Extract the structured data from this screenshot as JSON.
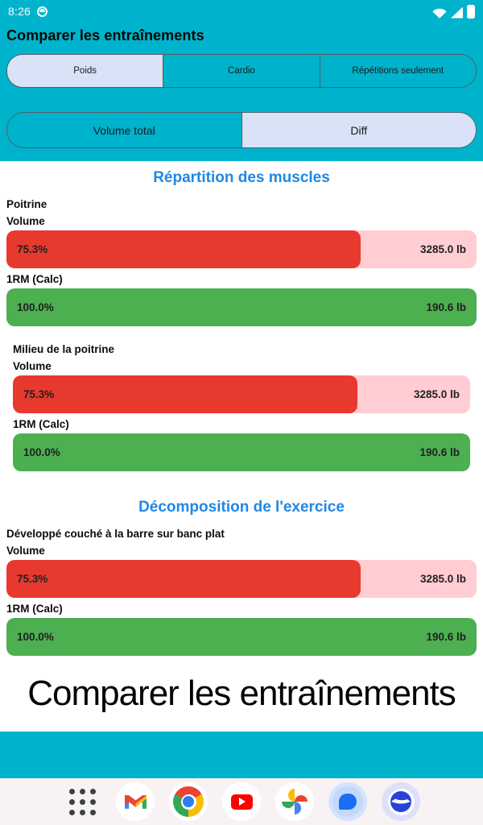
{
  "status_bar": {
    "time": "8:26"
  },
  "header": {
    "title": "Comparer les entraînements"
  },
  "segmented_controls": {
    "exercise_type": {
      "options": [
        {
          "label": "Poids",
          "selected": true
        },
        {
          "label": "Cardio",
          "selected": false
        },
        {
          "label": "Répétitions seulement",
          "selected": false
        }
      ]
    },
    "comparison_mode": {
      "options": [
        {
          "label": "Volume total",
          "selected": false
        },
        {
          "label": "Diff",
          "selected": true
        }
      ]
    }
  },
  "sections": [
    {
      "heading": "Répartition des muscles",
      "groups": [
        {
          "name": "Poitrine",
          "bars": [
            {
              "label": "Volume",
              "pct": 75.3,
              "pct_text": "75.3%",
              "value": "3285.0 lb",
              "color": "red"
            },
            {
              "label": "1RM (Calc)",
              "pct": 100,
              "pct_text": "100.0%",
              "value": "190.6 lb",
              "color": "green"
            }
          ]
        },
        {
          "name": "Milieu de la poitrine",
          "bars": [
            {
              "label": "Volume",
              "pct": 75.3,
              "pct_text": "75.3%",
              "value": "3285.0 lb",
              "color": "red"
            },
            {
              "label": "1RM (Calc)",
              "pct": 100,
              "pct_text": "100.0%",
              "value": "190.6 lb",
              "color": "green"
            }
          ]
        }
      ]
    },
    {
      "heading": "Décomposition de l'exercice",
      "groups": [
        {
          "name": "Développé couché à la barre sur banc plat",
          "bars": [
            {
              "label": "Volume",
              "pct": 75.3,
              "pct_text": "75.3%",
              "value": "3285.0 lb",
              "color": "red"
            },
            {
              "label": "1RM (Calc)",
              "pct": 100,
              "pct_text": "100.0%",
              "value": "190.6 lb",
              "color": "green"
            }
          ]
        }
      ]
    }
  ],
  "footer": {
    "title": "Comparer les entraînements"
  },
  "dock": {
    "apps": [
      {
        "name": "app-drawer"
      },
      {
        "name": "gmail"
      },
      {
        "name": "chrome"
      },
      {
        "name": "youtube"
      },
      {
        "name": "google-photos"
      },
      {
        "name": "messages"
      },
      {
        "name": "browser"
      }
    ]
  },
  "colors": {
    "accent_cyan": "#00b3cc",
    "selected_segment": "#d9e2f6",
    "bar_red": "#e8392e",
    "bar_red_track": "#ffcdd2",
    "bar_green": "#4caf50",
    "heading_blue": "#1e88e5"
  }
}
